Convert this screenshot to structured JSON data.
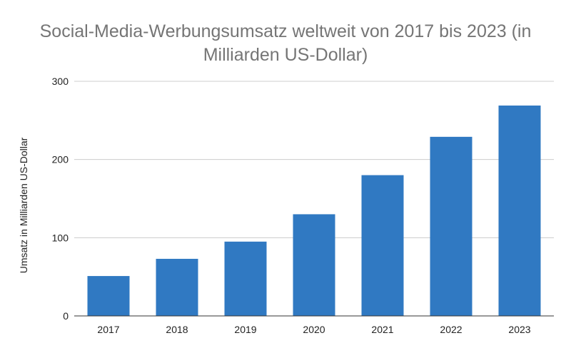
{
  "chart_data": {
    "type": "bar",
    "title_line1": "Social-Media-Werbungsumsatz weltweit von 2017 bis 2023 (in",
    "title_line2": "Milliarden US-Dollar)",
    "xlabel": "",
    "ylabel": "Umsatz in Milliarden US-Dollar",
    "categories": [
      "2017",
      "2018",
      "2019",
      "2020",
      "2021",
      "2022",
      "2023"
    ],
    "values": [
      51,
      73,
      95,
      130,
      180,
      229,
      269
    ],
    "ylim": [
      0,
      300
    ],
    "yticks": [
      "0",
      "100",
      "200",
      "300"
    ],
    "grid": true,
    "legend": "none",
    "bar_color": "#3079c2",
    "grid_color": "#cccccc"
  }
}
